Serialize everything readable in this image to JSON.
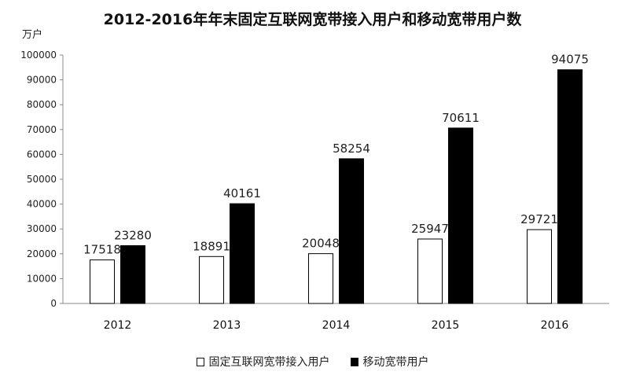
{
  "chart_data": {
    "type": "bar",
    "title": "2012-2016年年末固定互联网宽带接入用户和移动宽带用户数",
    "ylabel": "万户",
    "xlabel": "",
    "categories": [
      "2012",
      "2013",
      "2014",
      "2015",
      "2016"
    ],
    "series": [
      {
        "name": "固定互联网宽带接入用户",
        "values": [
          17518,
          18891,
          20048,
          25947,
          29721
        ],
        "color": "#ffffff"
      },
      {
        "name": "移动宽带用户",
        "values": [
          23280,
          40161,
          58254,
          70611,
          94075
        ],
        "color": "#000000"
      }
    ],
    "ylim": [
      0,
      100000
    ],
    "yticks": [
      0,
      10000,
      20000,
      30000,
      40000,
      50000,
      60000,
      70000,
      80000,
      90000,
      100000
    ],
    "grid": false,
    "legend_position": "bottom"
  }
}
